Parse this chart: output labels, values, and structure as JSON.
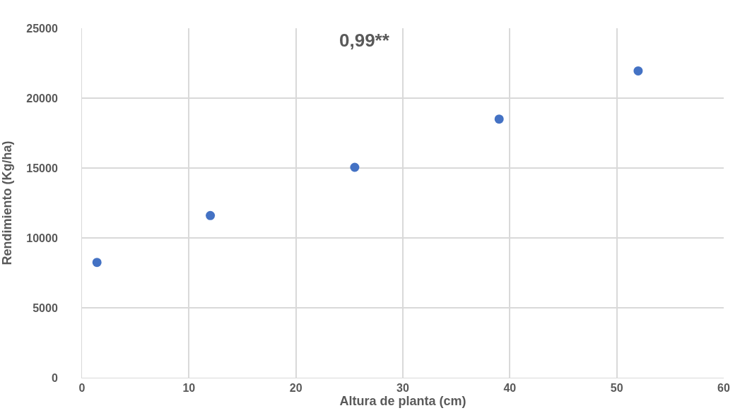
{
  "chart_data": {
    "type": "scatter",
    "xlabel": "Altura de planta (cm)",
    "ylabel": "Rendimiento (Kg/ha)",
    "annotations": [
      "0,99**"
    ],
    "x": [
      1.4,
      12.0,
      25.5,
      39.0,
      52.0
    ],
    "series": [
      {
        "color": "#4472c4",
        "values": [
          8250,
          11600,
          15050,
          18500,
          21950
        ]
      }
    ],
    "xlim": [
      0,
      60
    ],
    "xticks": [
      0,
      10,
      20,
      30,
      40,
      50,
      60
    ],
    "ylim": [
      0,
      25000
    ],
    "yticks": [
      0,
      5000,
      10000,
      15000,
      20000,
      25000
    ],
    "grid": true
  }
}
